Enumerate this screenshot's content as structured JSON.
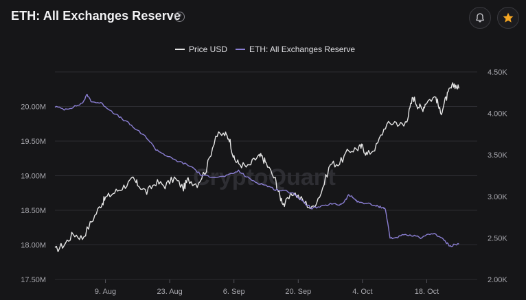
{
  "header": {
    "title": "ETH: All Exchanges Reserve",
    "help_icon": "question-circle-icon",
    "bell_icon": "bell-icon",
    "star_icon": "star-icon",
    "star_color": "#f5a623"
  },
  "watermark": "CryptoQuant",
  "chart_data": {
    "type": "line",
    "title": "ETH: All Exchanges Reserve",
    "legend": [
      "Price USD",
      "ETH: All Exchanges Reserve"
    ],
    "legend_position": "top-center",
    "x_labels": [
      "9. Aug",
      "23. Aug",
      "6. Sep",
      "20. Sep",
      "4. Oct",
      "18. Oct"
    ],
    "x_range": [
      "2021-07-29",
      "2021-10-29"
    ],
    "y_left": {
      "label": "ETH: All Exchanges Reserve",
      "range": [
        17500000,
        20500000
      ],
      "ticks": [
        "17.50M",
        "18.00M",
        "18.50M",
        "19.00M",
        "19.50M",
        "20.00M"
      ]
    },
    "y_right": {
      "label": "Price USD",
      "range": [
        2000,
        4500
      ],
      "ticks": [
        "2.00K",
        "2.50K",
        "3.00K",
        "3.50K",
        "4.00K",
        "4.50K"
      ]
    },
    "grid": true,
    "series": [
      {
        "name": "Price USD",
        "axis": "right",
        "color": "#e6e6e6",
        "points": [
          [
            0,
            2350
          ],
          [
            2,
            2420
          ],
          [
            4,
            2550
          ],
          [
            6,
            2500
          ],
          [
            8,
            2700
          ],
          [
            10,
            2900
          ],
          [
            11,
            2980
          ],
          [
            13,
            3050
          ],
          [
            15,
            3120
          ],
          [
            17,
            3200
          ],
          [
            18,
            3150
          ],
          [
            20,
            3050
          ],
          [
            22,
            3170
          ],
          [
            24,
            3130
          ],
          [
            26,
            3220
          ],
          [
            28,
            3100
          ],
          [
            29,
            3200
          ],
          [
            31,
            3150
          ],
          [
            33,
            3330
          ],
          [
            35,
            3730
          ],
          [
            37,
            3750
          ],
          [
            38,
            3700
          ],
          [
            39,
            3450
          ],
          [
            40,
            3400
          ],
          [
            42,
            3350
          ],
          [
            44,
            3470
          ],
          [
            45,
            3480
          ],
          [
            46,
            3400
          ],
          [
            48,
            3200
          ],
          [
            49,
            3000
          ],
          [
            50,
            2900
          ],
          [
            52,
            3050
          ],
          [
            54,
            2950
          ],
          [
            56,
            2850
          ],
          [
            58,
            3050
          ],
          [
            60,
            3390
          ],
          [
            62,
            3400
          ],
          [
            64,
            3550
          ],
          [
            66,
            3580
          ],
          [
            67,
            3600
          ],
          [
            68,
            3500
          ],
          [
            70,
            3600
          ],
          [
            72,
            3850
          ],
          [
            74,
            3900
          ],
          [
            76,
            3850
          ],
          [
            77,
            3980
          ],
          [
            78,
            4200
          ],
          [
            79,
            4100
          ],
          [
            80,
            4050
          ],
          [
            81,
            4150
          ],
          [
            83,
            4200
          ],
          [
            84,
            4000
          ],
          [
            85,
            4150
          ],
          [
            86,
            4280
          ],
          [
            87,
            4350
          ],
          [
            88,
            4300
          ]
        ]
      },
      {
        "name": "ETH: All Exchanges Reserve",
        "axis": "left",
        "color": "#8b7fd4",
        "points": [
          [
            0,
            20000000
          ],
          [
            2,
            19960000
          ],
          [
            4,
            19990000
          ],
          [
            6,
            20050000
          ],
          [
            7,
            20170000
          ],
          [
            8,
            20070000
          ],
          [
            10,
            20050000
          ],
          [
            12,
            19950000
          ],
          [
            14,
            19850000
          ],
          [
            16,
            19760000
          ],
          [
            18,
            19650000
          ],
          [
            20,
            19550000
          ],
          [
            22,
            19380000
          ],
          [
            24,
            19300000
          ],
          [
            26,
            19230000
          ],
          [
            28,
            19180000
          ],
          [
            30,
            19120000
          ],
          [
            32,
            19000000
          ],
          [
            34,
            18990000
          ],
          [
            36,
            18980000
          ],
          [
            38,
            19010000
          ],
          [
            40,
            19070000
          ],
          [
            42,
            18970000
          ],
          [
            44,
            18900000
          ],
          [
            46,
            18860000
          ],
          [
            48,
            18800000
          ],
          [
            50,
            18780000
          ],
          [
            52,
            18750000
          ],
          [
            54,
            18620000
          ],
          [
            56,
            18530000
          ],
          [
            58,
            18550000
          ],
          [
            60,
            18590000
          ],
          [
            62,
            18580000
          ],
          [
            63,
            18620000
          ],
          [
            64,
            18720000
          ],
          [
            65,
            18680000
          ],
          [
            66,
            18620000
          ],
          [
            68,
            18600000
          ],
          [
            70,
            18560000
          ],
          [
            71,
            18550000
          ],
          [
            72,
            18520000
          ],
          [
            73,
            18100000
          ],
          [
            74,
            18100000
          ],
          [
            76,
            18140000
          ],
          [
            78,
            18130000
          ],
          [
            80,
            18100000
          ],
          [
            82,
            18170000
          ],
          [
            84,
            18120000
          ],
          [
            85,
            18050000
          ],
          [
            86,
            17980000
          ],
          [
            87,
            18000000
          ],
          [
            88,
            18010000
          ]
        ]
      }
    ]
  }
}
